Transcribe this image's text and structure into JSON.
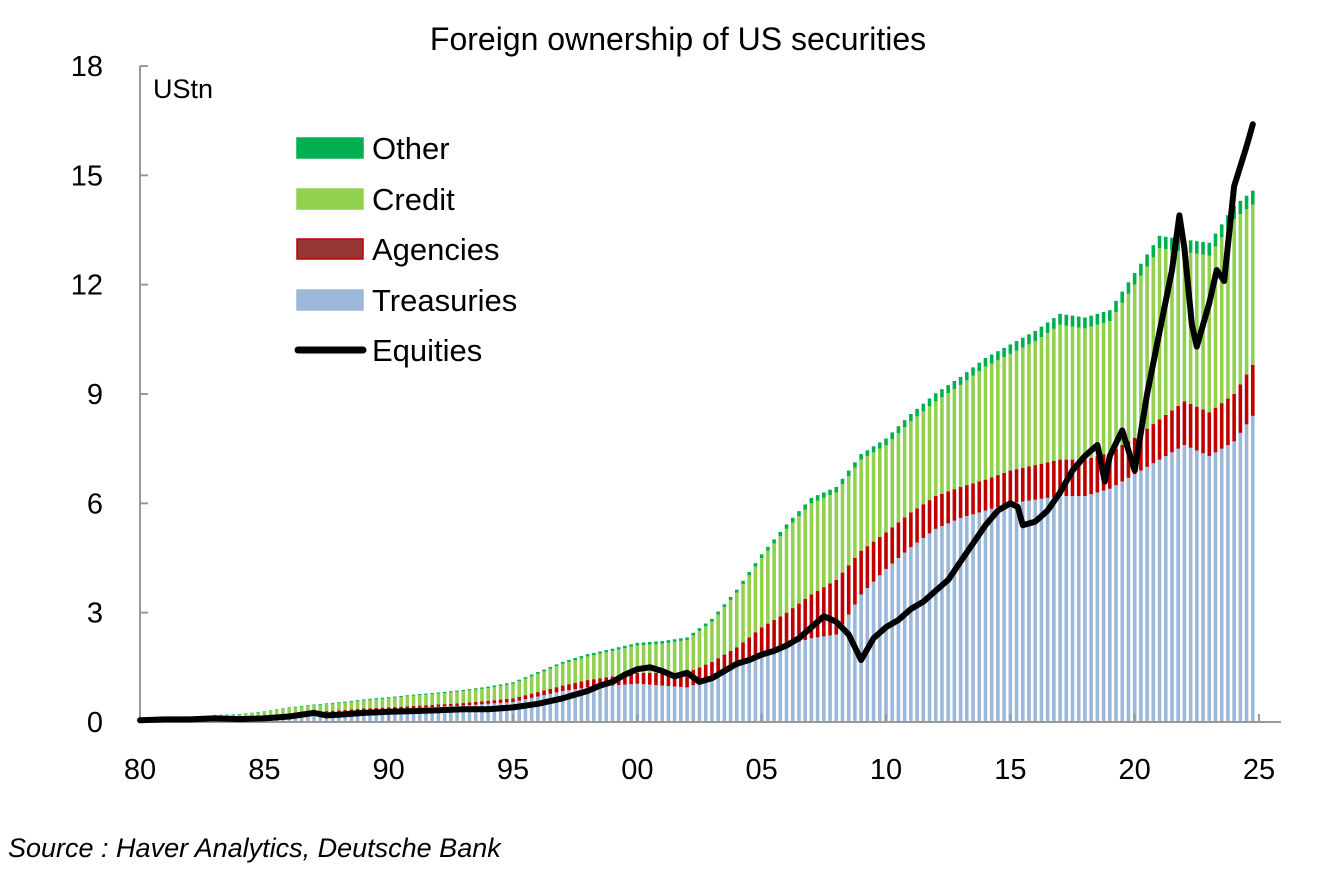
{
  "chart_data": {
    "type": "bar",
    "subtype": "stacked-bar-with-line",
    "title": "Foreign ownership of US securities",
    "ylabel": "UStn",
    "ylim": [
      0,
      18
    ],
    "y_ticks": [
      "0",
      "3",
      "6",
      "9",
      "12",
      "15",
      "18"
    ],
    "x_ticks": [
      "80",
      "85",
      "90",
      "95",
      "00",
      "05",
      "10",
      "15",
      "20",
      "25"
    ],
    "x_tick_years": [
      1980,
      1985,
      1990,
      1995,
      2000,
      2005,
      2010,
      2015,
      2020,
      2025
    ],
    "xlim": [
      1980,
      2025
    ],
    "grid": false,
    "legend_position": "top-left",
    "x": [
      1980,
      1981,
      1982,
      1983,
      1984,
      1985,
      1986,
      1987,
      1988,
      1989,
      1990,
      1991,
      1992,
      1993,
      1994,
      1995,
      1996,
      1997,
      1998,
      1999,
      2000,
      2001,
      2002,
      2003,
      2004,
      2005,
      2006,
      2007,
      2008,
      2009,
      2010,
      2011,
      2012,
      2013,
      2014,
      2015,
      2016,
      2017,
      2018,
      2019,
      2020,
      2021,
      2022,
      2023,
      2024,
      2024.75
    ],
    "series": [
      {
        "name": "Treasuries",
        "kind": "bar",
        "color": "#9bb7d9",
        "values": [
          0.05,
          0.07,
          0.08,
          0.1,
          0.12,
          0.15,
          0.2,
          0.25,
          0.28,
          0.32,
          0.35,
          0.38,
          0.42,
          0.45,
          0.5,
          0.55,
          0.7,
          0.85,
          0.95,
          1.0,
          1.05,
          1.0,
          0.95,
          1.2,
          1.5,
          1.9,
          2.1,
          2.3,
          2.4,
          3.5,
          4.2,
          4.8,
          5.3,
          5.6,
          5.8,
          6.0,
          6.1,
          6.2,
          6.2,
          6.4,
          6.8,
          7.2,
          7.6,
          7.3,
          7.7,
          8.4
        ]
      },
      {
        "name": "Agencies",
        "kind": "bar",
        "color": "#c00000",
        "values": [
          0.01,
          0.01,
          0.01,
          0.02,
          0.02,
          0.02,
          0.03,
          0.03,
          0.04,
          0.05,
          0.05,
          0.06,
          0.06,
          0.07,
          0.08,
          0.1,
          0.12,
          0.15,
          0.2,
          0.25,
          0.3,
          0.35,
          0.4,
          0.45,
          0.55,
          0.7,
          0.9,
          1.2,
          1.5,
          1.2,
          1.0,
          0.95,
          0.9,
          0.85,
          0.85,
          0.9,
          0.95,
          1.0,
          1.0,
          1.0,
          1.0,
          1.1,
          1.2,
          1.2,
          1.3,
          1.4
        ]
      },
      {
        "name": "Credit",
        "kind": "bar",
        "color": "#92d050",
        "values": [
          0.03,
          0.04,
          0.05,
          0.06,
          0.07,
          0.1,
          0.15,
          0.18,
          0.2,
          0.22,
          0.25,
          0.28,
          0.3,
          0.33,
          0.35,
          0.4,
          0.5,
          0.6,
          0.65,
          0.7,
          0.75,
          0.8,
          0.9,
          1.1,
          1.5,
          1.9,
          2.3,
          2.5,
          2.4,
          2.5,
          2.4,
          2.5,
          2.6,
          2.8,
          3.1,
          3.2,
          3.4,
          3.7,
          3.6,
          3.6,
          4.2,
          4.7,
          4.1,
          4.3,
          4.8,
          4.4
        ]
      },
      {
        "name": "Other",
        "kind": "bar",
        "color": "#00b050",
        "values": [
          0.01,
          0.01,
          0.01,
          0.01,
          0.01,
          0.02,
          0.02,
          0.02,
          0.02,
          0.03,
          0.03,
          0.03,
          0.03,
          0.03,
          0.04,
          0.04,
          0.05,
          0.05,
          0.06,
          0.06,
          0.07,
          0.07,
          0.07,
          0.08,
          0.08,
          0.1,
          0.12,
          0.15,
          0.15,
          0.15,
          0.18,
          0.2,
          0.22,
          0.22,
          0.24,
          0.26,
          0.28,
          0.3,
          0.3,
          0.3,
          0.32,
          0.34,
          0.34,
          0.35,
          0.36,
          0.38
        ]
      },
      {
        "name": "Equities",
        "kind": "line",
        "color": "#000000",
        "points": [
          [
            1980,
            0.05
          ],
          [
            1981,
            0.07
          ],
          [
            1982,
            0.07
          ],
          [
            1983,
            0.1
          ],
          [
            1984,
            0.08
          ],
          [
            1985,
            0.1
          ],
          [
            1986,
            0.15
          ],
          [
            1987,
            0.25
          ],
          [
            1987.5,
            0.18
          ],
          [
            1988,
            0.2
          ],
          [
            1989,
            0.25
          ],
          [
            1990,
            0.28
          ],
          [
            1991,
            0.3
          ],
          [
            1992,
            0.32
          ],
          [
            1993,
            0.35
          ],
          [
            1994,
            0.35
          ],
          [
            1995,
            0.4
          ],
          [
            1996,
            0.5
          ],
          [
            1997,
            0.65
          ],
          [
            1998,
            0.85
          ],
          [
            1998.5,
            1.0
          ],
          [
            1999,
            1.1
          ],
          [
            1999.5,
            1.3
          ],
          [
            2000,
            1.45
          ],
          [
            2000.5,
            1.5
          ],
          [
            2001,
            1.4
          ],
          [
            2001.5,
            1.25
          ],
          [
            2002,
            1.35
          ],
          [
            2002.5,
            1.1
          ],
          [
            2003,
            1.2
          ],
          [
            2003.5,
            1.4
          ],
          [
            2004,
            1.6
          ],
          [
            2004.5,
            1.7
          ],
          [
            2005,
            1.85
          ],
          [
            2005.5,
            1.95
          ],
          [
            2006,
            2.1
          ],
          [
            2006.5,
            2.3
          ],
          [
            2007,
            2.6
          ],
          [
            2007.5,
            2.9
          ],
          [
            2008,
            2.75
          ],
          [
            2008.5,
            2.4
          ],
          [
            2009,
            1.7
          ],
          [
            2009.5,
            2.3
          ],
          [
            2010,
            2.6
          ],
          [
            2010.5,
            2.8
          ],
          [
            2011,
            3.1
          ],
          [
            2011.5,
            3.3
          ],
          [
            2012,
            3.6
          ],
          [
            2012.5,
            3.9
          ],
          [
            2013,
            4.4
          ],
          [
            2013.5,
            4.9
          ],
          [
            2014,
            5.4
          ],
          [
            2014.5,
            5.8
          ],
          [
            2015,
            6.0
          ],
          [
            2015.3,
            5.9
          ],
          [
            2015.5,
            5.4
          ],
          [
            2016,
            5.5
          ],
          [
            2016.5,
            5.8
          ],
          [
            2017,
            6.3
          ],
          [
            2017.5,
            6.9
          ],
          [
            2018,
            7.3
          ],
          [
            2018.5,
            7.6
          ],
          [
            2018.8,
            6.6
          ],
          [
            2019,
            7.3
          ],
          [
            2019.5,
            8.0
          ],
          [
            2020,
            6.9
          ],
          [
            2020.5,
            9.0
          ],
          [
            2021,
            10.7
          ],
          [
            2021.5,
            12.4
          ],
          [
            2021.8,
            13.9
          ],
          [
            2022,
            13.0
          ],
          [
            2022.3,
            10.9
          ],
          [
            2022.5,
            10.3
          ],
          [
            2023,
            11.5
          ],
          [
            2023.3,
            12.4
          ],
          [
            2023.6,
            12.1
          ],
          [
            2024,
            14.7
          ],
          [
            2024.5,
            15.8
          ],
          [
            2024.75,
            16.4
          ]
        ]
      }
    ],
    "source": "Source : Haver Analytics, Deutsche Bank"
  }
}
